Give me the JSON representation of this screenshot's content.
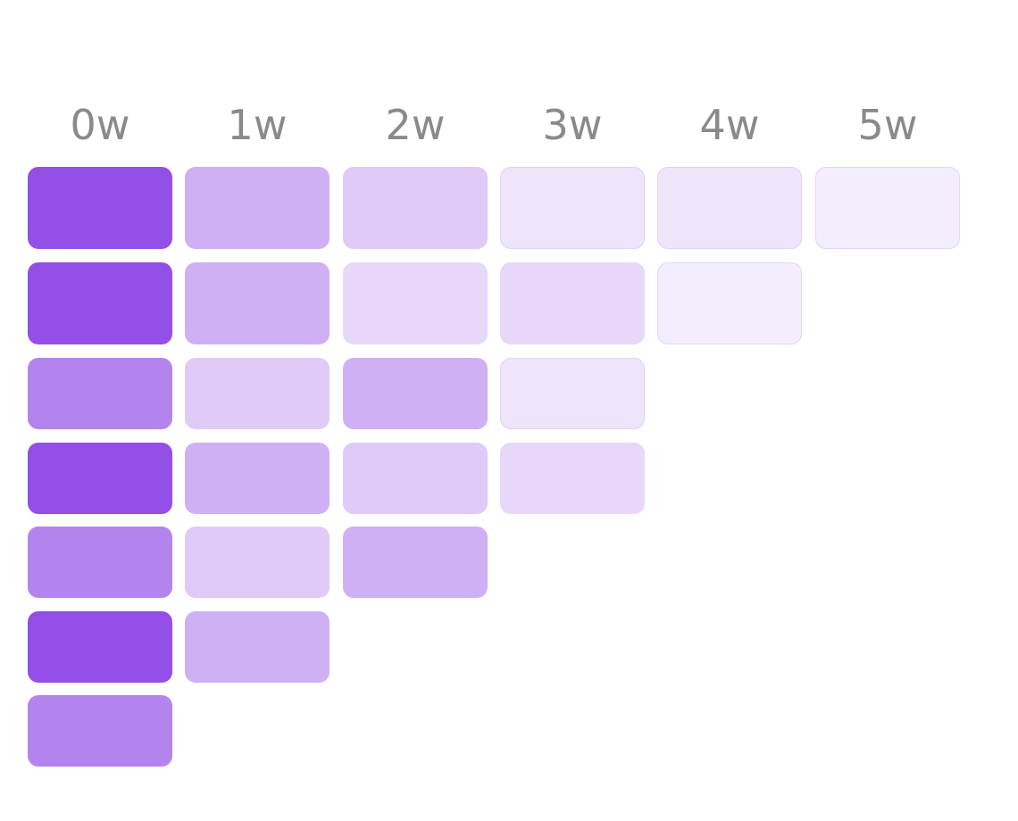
{
  "chart_data": {
    "type": "heatmap",
    "columns": [
      "0w",
      "1w",
      "2w",
      "3w",
      "4w",
      "5w"
    ],
    "color_scale": {
      "0": "#ffffff",
      "1": "#944fe7",
      "intensity_levels": {
        "1.0": "#944fe7",
        "0.7": "#b383ef",
        "0.45": "#c8a6f2",
        "0.3": "#ddc9f6",
        "0.22": "#e6daf9",
        "0.15": "#eee4fd",
        "0.1": "#f2ebfd"
      }
    },
    "rows": [
      [
        1.0,
        0.45,
        0.3,
        0.15,
        0.15,
        0.1
      ],
      [
        1.0,
        0.45,
        0.22,
        0.22,
        0.1
      ],
      [
        0.7,
        0.3,
        0.45,
        0.15
      ],
      [
        1.0,
        0.45,
        0.3,
        0.22
      ],
      [
        0.7,
        0.3,
        0.45
      ],
      [
        1.0,
        0.45
      ],
      [
        0.7
      ]
    ]
  }
}
